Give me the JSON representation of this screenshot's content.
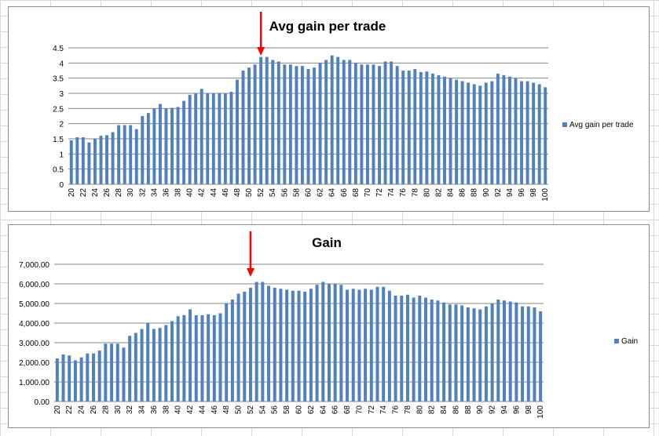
{
  "colors": {
    "bar": "#4f81bd",
    "grid": "#868686",
    "annotation_arrow": "#ff0000"
  },
  "chart_data": [
    {
      "type": "bar",
      "title": "Avg gain per trade",
      "x": [
        20,
        21,
        22,
        23,
        24,
        25,
        26,
        27,
        28,
        29,
        30,
        31,
        32,
        33,
        34,
        35,
        36,
        37,
        38,
        39,
        40,
        41,
        42,
        43,
        44,
        45,
        46,
        47,
        48,
        49,
        50,
        51,
        52,
        53,
        54,
        55,
        56,
        57,
        58,
        59,
        60,
        61,
        62,
        63,
        64,
        65,
        66,
        67,
        68,
        69,
        70,
        71,
        72,
        73,
        74,
        75,
        76,
        77,
        78,
        79,
        80,
        81,
        82,
        83,
        84,
        85,
        86,
        87,
        88,
        89,
        90,
        91,
        92,
        93,
        94,
        95,
        96,
        97,
        98,
        99,
        100
      ],
      "series": [
        {
          "name": "Avg gain per trade",
          "values": [
            1.45,
            1.55,
            1.55,
            1.38,
            1.5,
            1.6,
            1.62,
            1.72,
            1.95,
            1.95,
            1.95,
            1.82,
            2.25,
            2.35,
            2.5,
            2.65,
            2.5,
            2.52,
            2.55,
            2.75,
            2.95,
            3.0,
            3.15,
            3.0,
            3.0,
            3.0,
            3.0,
            3.05,
            3.45,
            3.75,
            3.85,
            3.95,
            4.2,
            4.2,
            4.1,
            4.05,
            3.95,
            3.95,
            3.9,
            3.9,
            3.8,
            3.85,
            4.0,
            4.1,
            4.25,
            4.2,
            4.1,
            4.1,
            4.0,
            3.95,
            3.95,
            3.95,
            3.9,
            4.05,
            4.05,
            3.9,
            3.75,
            3.75,
            3.8,
            3.7,
            3.72,
            3.65,
            3.6,
            3.55,
            3.5,
            3.45,
            3.4,
            3.35,
            3.3,
            3.25,
            3.35,
            3.4,
            3.65,
            3.6,
            3.55,
            3.5,
            3.4,
            3.4,
            3.35,
            3.3,
            3.2
          ]
        }
      ],
      "y_ticks": [
        "0",
        "0.5",
        "1",
        "1.5",
        "2",
        "2.5",
        "3",
        "3.5",
        "4",
        "4.5"
      ],
      "ylim": [
        0,
        4.5
      ],
      "x_tick_step": 2,
      "grid": true,
      "legend_position": "right",
      "annotation": {
        "type": "arrow",
        "at_x": 52
      }
    },
    {
      "type": "bar",
      "title": "Gain",
      "x": [
        20,
        21,
        22,
        23,
        24,
        25,
        26,
        27,
        28,
        29,
        30,
        31,
        32,
        33,
        34,
        35,
        36,
        37,
        38,
        39,
        40,
        41,
        42,
        43,
        44,
        45,
        46,
        47,
        48,
        49,
        50,
        51,
        52,
        53,
        54,
        55,
        56,
        57,
        58,
        59,
        60,
        61,
        62,
        63,
        64,
        65,
        66,
        67,
        68,
        69,
        70,
        71,
        72,
        73,
        74,
        75,
        76,
        77,
        78,
        79,
        80,
        81,
        82,
        83,
        84,
        85,
        86,
        87,
        88,
        89,
        90,
        91,
        92,
        93,
        94,
        95,
        96,
        97,
        98,
        99,
        100
      ],
      "series": [
        {
          "name": "Gain",
          "values": [
            2200,
            2400,
            2350,
            2100,
            2250,
            2450,
            2450,
            2600,
            2950,
            2950,
            2950,
            2750,
            3350,
            3500,
            3700,
            4000,
            3700,
            3750,
            3900,
            4100,
            4350,
            4400,
            4700,
            4400,
            4400,
            4450,
            4400,
            4500,
            5000,
            5200,
            5500,
            5600,
            5800,
            6100,
            6100,
            5900,
            5800,
            5750,
            5700,
            5650,
            5650,
            5600,
            5750,
            5950,
            6100,
            6000,
            6000,
            5950,
            5700,
            5750,
            5700,
            5750,
            5700,
            5850,
            5850,
            5650,
            5400,
            5400,
            5450,
            5300,
            5400,
            5300,
            5200,
            5150,
            5050,
            4950,
            4950,
            4900,
            4800,
            4750,
            4700,
            4850,
            5000,
            5200,
            5150,
            5100,
            5050,
            4850,
            4850,
            4800,
            4600
          ]
        }
      ],
      "y_ticks": [
        "0.00",
        "1,000.00",
        "2,000.00",
        "3,000.00",
        "4,000.00",
        "5,000.00",
        "6,000.00",
        "7,000.00"
      ],
      "ylim": [
        0,
        7000
      ],
      "x_tick_step": 2,
      "grid": true,
      "legend_position": "right",
      "annotation": {
        "type": "arrow",
        "at_x": 52
      }
    }
  ]
}
